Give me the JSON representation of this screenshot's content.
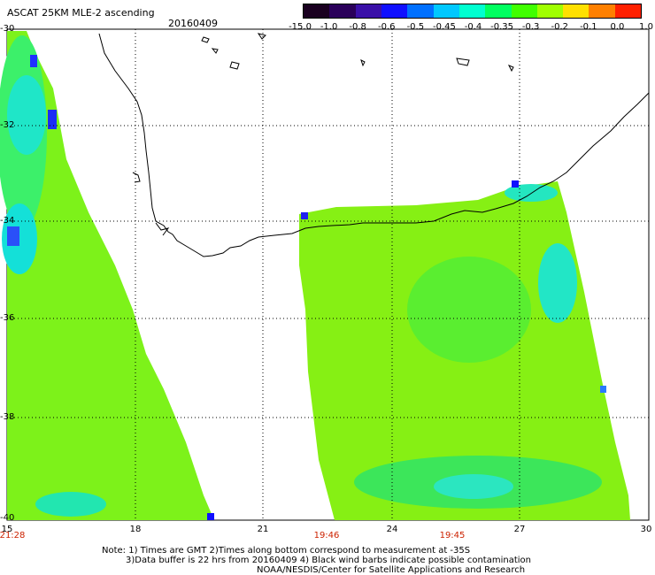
{
  "header": {
    "title": "ASCAT 25KM MLE-2 ascending",
    "date": "20160409"
  },
  "colorbar": {
    "labels": [
      "-15.0",
      "-1.0",
      "-0.8",
      "-0.6",
      "-0.5",
      "-0.45",
      "-0.4",
      "-0.35",
      "-0.3",
      "-0.2",
      "-0.1",
      "0.0",
      "1.0"
    ],
    "colors": [
      "#1a0020",
      "#2a005a",
      "#3a10a8",
      "#1010ff",
      "#0070ff",
      "#00c8ff",
      "#00ffd0",
      "#00ff60",
      "#40ff00",
      "#a0ff00",
      "#ffe000",
      "#ff8000",
      "#ff2000"
    ]
  },
  "axes": {
    "y_labels": [
      "-30",
      "-32",
      "-34",
      "-36",
      "-38",
      "-40"
    ],
    "x_labels": [
      "15",
      "18",
      "21",
      "24",
      "27",
      "30"
    ]
  },
  "times": [
    "21:28",
    "19:46",
    "19:45"
  ],
  "notes": {
    "line1": "Note: 1) Times are GMT 2)Times along bottom correspond to measurement at -35S",
    "line2": "3)Data buffer is 22 hrs from 20160409 4) Black wind barbs indicate possible contamination",
    "line3": "NOAA/NESDIS/Center for Satellite Applications and Research"
  }
}
